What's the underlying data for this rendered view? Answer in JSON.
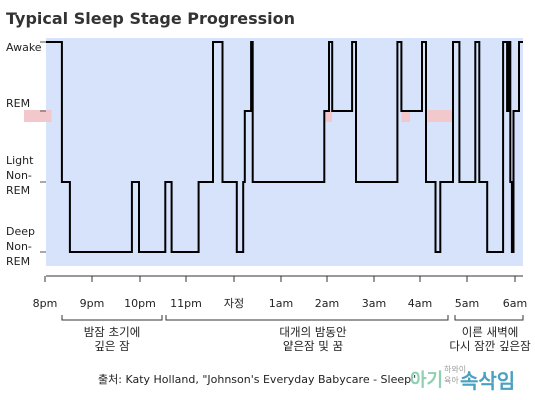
{
  "chart_data": {
    "type": "line",
    "title": "Typical Sleep Stage Progression",
    "y_levels": [
      "Awake",
      "REM",
      "Light Non-REM",
      "Deep Non-REM"
    ],
    "y_label_lines": [
      [
        "Awake"
      ],
      [
        "REM"
      ],
      [
        "Light",
        "Non-",
        "REM"
      ],
      [
        "Deep",
        "Non-",
        "REM"
      ]
    ],
    "x_ticks": [
      "8pm",
      "9pm",
      "10pm",
      "11pm",
      "자정",
      "1am",
      "2am",
      "3am",
      "4am",
      "5am",
      "6am"
    ],
    "x_range_hours": [
      20,
      26
    ],
    "series": [
      {
        "points": [
          [
            20.0,
            "Awake"
          ],
          [
            20.2,
            "Awake"
          ],
          [
            20.2,
            "Light Non-REM"
          ],
          [
            20.3,
            "Light Non-REM"
          ],
          [
            20.3,
            "Deep Non-REM"
          ],
          [
            21.08,
            "Deep Non-REM"
          ],
          [
            21.08,
            "Light Non-REM"
          ],
          [
            21.17,
            "Light Non-REM"
          ],
          [
            21.17,
            "Deep Non-REM"
          ],
          [
            21.5,
            "Deep Non-REM"
          ],
          [
            21.5,
            "Light Non-REM"
          ],
          [
            21.58,
            "Light Non-REM"
          ],
          [
            21.58,
            "Deep Non-REM"
          ],
          [
            21.92,
            "Deep Non-REM"
          ],
          [
            21.92,
            "Light Non-REM"
          ],
          [
            22.1,
            "Light Non-REM"
          ],
          [
            22.1,
            "Awake"
          ],
          [
            22.22,
            "Awake"
          ],
          [
            22.22,
            "Light Non-REM"
          ],
          [
            22.4,
            "Light Non-REM"
          ],
          [
            22.4,
            "Deep Non-REM"
          ],
          [
            22.48,
            "Deep Non-REM"
          ],
          [
            22.48,
            "Light Non-REM"
          ],
          [
            22.5,
            "Light Non-REM"
          ],
          [
            22.5,
            "REM"
          ],
          [
            22.58,
            "REM"
          ],
          [
            22.58,
            "Awake"
          ],
          [
            22.6,
            "Awake"
          ],
          [
            22.6,
            "Light Non-REM"
          ],
          [
            23.5,
            "Light Non-REM"
          ],
          [
            23.5,
            "REM"
          ],
          [
            23.56,
            "REM"
          ],
          [
            23.56,
            "Awake"
          ],
          [
            23.6,
            "Awake"
          ],
          [
            23.6,
            "REM"
          ],
          [
            23.85,
            "REM"
          ],
          [
            23.85,
            "Awake"
          ],
          [
            23.9,
            "Awake"
          ],
          [
            23.9,
            "Light Non-REM"
          ],
          [
            24.42,
            "Light Non-REM"
          ],
          [
            24.42,
            "Awake"
          ],
          [
            24.47,
            "Awake"
          ],
          [
            24.47,
            "REM"
          ],
          [
            24.73,
            "REM"
          ],
          [
            24.73,
            "Awake"
          ],
          [
            24.78,
            "Awake"
          ],
          [
            24.78,
            "Light Non-REM"
          ],
          [
            24.9,
            "Light Non-REM"
          ],
          [
            24.9,
            "Deep Non-REM"
          ],
          [
            24.96,
            "Deep Non-REM"
          ],
          [
            24.96,
            "Light Non-REM"
          ],
          [
            25.12,
            "Light Non-REM"
          ],
          [
            25.12,
            "Awake"
          ],
          [
            25.2,
            "Awake"
          ],
          [
            25.2,
            "Light Non-REM"
          ],
          [
            25.4,
            "Light Non-REM"
          ],
          [
            25.4,
            "Awake"
          ],
          [
            25.45,
            "Awake"
          ],
          [
            25.45,
            "Light Non-REM"
          ],
          [
            25.55,
            "Light Non-REM"
          ],
          [
            25.55,
            "Deep Non-REM"
          ],
          [
            25.75,
            "Deep Non-REM"
          ],
          [
            25.75,
            "Awake"
          ],
          [
            25.8,
            "Awake"
          ],
          [
            25.8,
            "REM"
          ],
          [
            25.82,
            "REM"
          ],
          [
            25.82,
            "Awake"
          ],
          [
            25.84,
            "Awake"
          ],
          [
            25.84,
            "Light Non-REM"
          ],
          [
            25.86,
            "Light Non-REM"
          ],
          [
            25.86,
            "Deep Non-REM"
          ],
          [
            25.88,
            "Deep Non-REM"
          ],
          [
            25.88,
            "REM"
          ],
          [
            25.95,
            "REM"
          ],
          [
            25.95,
            "Awake"
          ],
          [
            26.0,
            "Awake"
          ]
        ]
      }
    ],
    "rem_highlights": [
      [
        20.0,
        20.07
      ],
      [
        23.5,
        23.6
      ],
      [
        24.47,
        24.58
      ],
      [
        24.8,
        25.12
      ]
    ],
    "segments": [
      {
        "lines": [
          "밤잠 초기에",
          "깊은 잠"
        ],
        "from": 20.2,
        "to": 22.25
      },
      {
        "lines": [
          "대개의 밤동안",
          "얕은잠 및 꿈"
        ],
        "from": 22.28,
        "to": 25.75
      },
      {
        "lines": [
          "이른 새벽에",
          "다시 잠깐 깊은잠"
        ],
        "from": 25.45,
        "to": 26.0
      }
    ],
    "source": "출처:   Katy Holland, \"Johnson's Everyday Babycare - Sleep\"",
    "colors": {
      "plot_bg": "#d6e3fb",
      "line": "#000000",
      "rem_highlight": "#f3c8cc",
      "axis": "#333333"
    },
    "grid": false
  },
  "watermark": {
    "small_top": "하와이",
    "small_bottom": "육아",
    "big": "속삭임",
    "prefix": "아기"
  }
}
